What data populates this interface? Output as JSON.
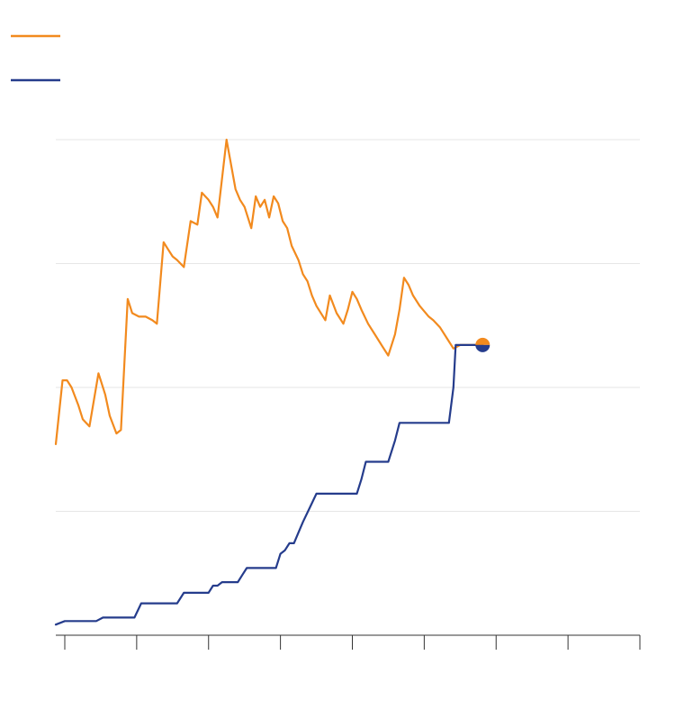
{
  "chart_data": {
    "type": "line",
    "title": "",
    "xlabel": "",
    "ylabel": "",
    "x_range": [
      0,
      130
    ],
    "ylim": [
      0,
      140
    ],
    "y_gridlines": [
      35,
      70,
      105,
      140
    ],
    "x_ticks": [
      2,
      18,
      34,
      50,
      66,
      82,
      98,
      114,
      130
    ],
    "grid": true,
    "legend": {
      "placement": "top-left",
      "entries": [
        {
          "series": "orange",
          "label": ""
        },
        {
          "series": "blue",
          "label": ""
        }
      ]
    },
    "colors": {
      "orange": "#f28a1e",
      "blue": "#253c8c"
    },
    "series": [
      {
        "key": "orange",
        "color": "#f28a1e",
        "points": [
          [
            0,
            54
          ],
          [
            1.5,
            72
          ],
          [
            2.5,
            72
          ],
          [
            3.5,
            70
          ],
          [
            5,
            65
          ],
          [
            6,
            61
          ],
          [
            7.5,
            59
          ],
          [
            9.5,
            74
          ],
          [
            10,
            72
          ],
          [
            11,
            68
          ],
          [
            12,
            62
          ],
          [
            13.5,
            57
          ],
          [
            14.5,
            58
          ],
          [
            16,
            95
          ],
          [
            17,
            91
          ],
          [
            18.5,
            90
          ],
          [
            20,
            90
          ],
          [
            21.5,
            89
          ],
          [
            22.5,
            88
          ],
          [
            24,
            111
          ],
          [
            25,
            109
          ],
          [
            26,
            107
          ],
          [
            27,
            106
          ],
          [
            28.5,
            104
          ],
          [
            30,
            117
          ],
          [
            31.5,
            116
          ],
          [
            32.5,
            125
          ],
          [
            34,
            123
          ],
          [
            35,
            121
          ],
          [
            36,
            118
          ],
          [
            38,
            140
          ],
          [
            40,
            126
          ],
          [
            41,
            123
          ],
          [
            42,
            121
          ],
          [
            43.5,
            115
          ],
          [
            44.5,
            124
          ],
          [
            45.5,
            121
          ],
          [
            46.5,
            123
          ],
          [
            47.5,
            118
          ],
          [
            48.5,
            124
          ],
          [
            49.5,
            122
          ],
          [
            50.5,
            117
          ],
          [
            51.5,
            115
          ],
          [
            52.5,
            110
          ],
          [
            54,
            106
          ],
          [
            55,
            102
          ],
          [
            56,
            100
          ],
          [
            57,
            96
          ],
          [
            58,
            93
          ],
          [
            60,
            89
          ],
          [
            61,
            96
          ],
          [
            62.5,
            91
          ],
          [
            64,
            88
          ],
          [
            65,
            92
          ],
          [
            66,
            97
          ],
          [
            67,
            95
          ],
          [
            68,
            92
          ],
          [
            69.5,
            88
          ],
          [
            71,
            85
          ],
          [
            72.5,
            82
          ],
          [
            74,
            79
          ],
          [
            75.5,
            85
          ],
          [
            76.5,
            92
          ],
          [
            77.5,
            101
          ],
          [
            78.5,
            99
          ],
          [
            79.5,
            96
          ],
          [
            81,
            93
          ],
          [
            83,
            90
          ],
          [
            84,
            89
          ],
          [
            85.5,
            87
          ],
          [
            87,
            84
          ],
          [
            88.5,
            81
          ],
          [
            90,
            82
          ],
          [
            91,
            82
          ],
          [
            92,
            82
          ],
          [
            93,
            82
          ],
          [
            94,
            82
          ],
          [
            95,
            82
          ]
        ]
      },
      {
        "key": "blue",
        "color": "#253c8c",
        "points": [
          [
            0,
            3
          ],
          [
            2,
            4
          ],
          [
            9,
            4
          ],
          [
            10.5,
            5
          ],
          [
            17.5,
            5
          ],
          [
            19,
            9
          ],
          [
            27,
            9
          ],
          [
            28.5,
            12
          ],
          [
            34,
            12
          ],
          [
            35,
            14
          ],
          [
            36,
            14
          ],
          [
            37,
            15
          ],
          [
            40.5,
            15
          ],
          [
            41.5,
            17
          ],
          [
            42.5,
            19
          ],
          [
            49,
            19
          ],
          [
            50,
            23
          ],
          [
            51,
            24
          ],
          [
            52,
            26
          ],
          [
            53,
            26
          ],
          [
            54,
            29
          ],
          [
            55,
            32
          ],
          [
            56.5,
            36
          ],
          [
            58,
            40
          ],
          [
            67,
            40
          ],
          [
            68,
            44
          ],
          [
            69,
            49
          ],
          [
            74,
            49
          ],
          [
            75.5,
            55
          ],
          [
            76.5,
            60
          ],
          [
            79,
            60
          ],
          [
            87.5,
            60
          ],
          [
            88.5,
            70
          ],
          [
            89,
            82
          ],
          [
            95,
            82
          ]
        ]
      }
    ]
  }
}
